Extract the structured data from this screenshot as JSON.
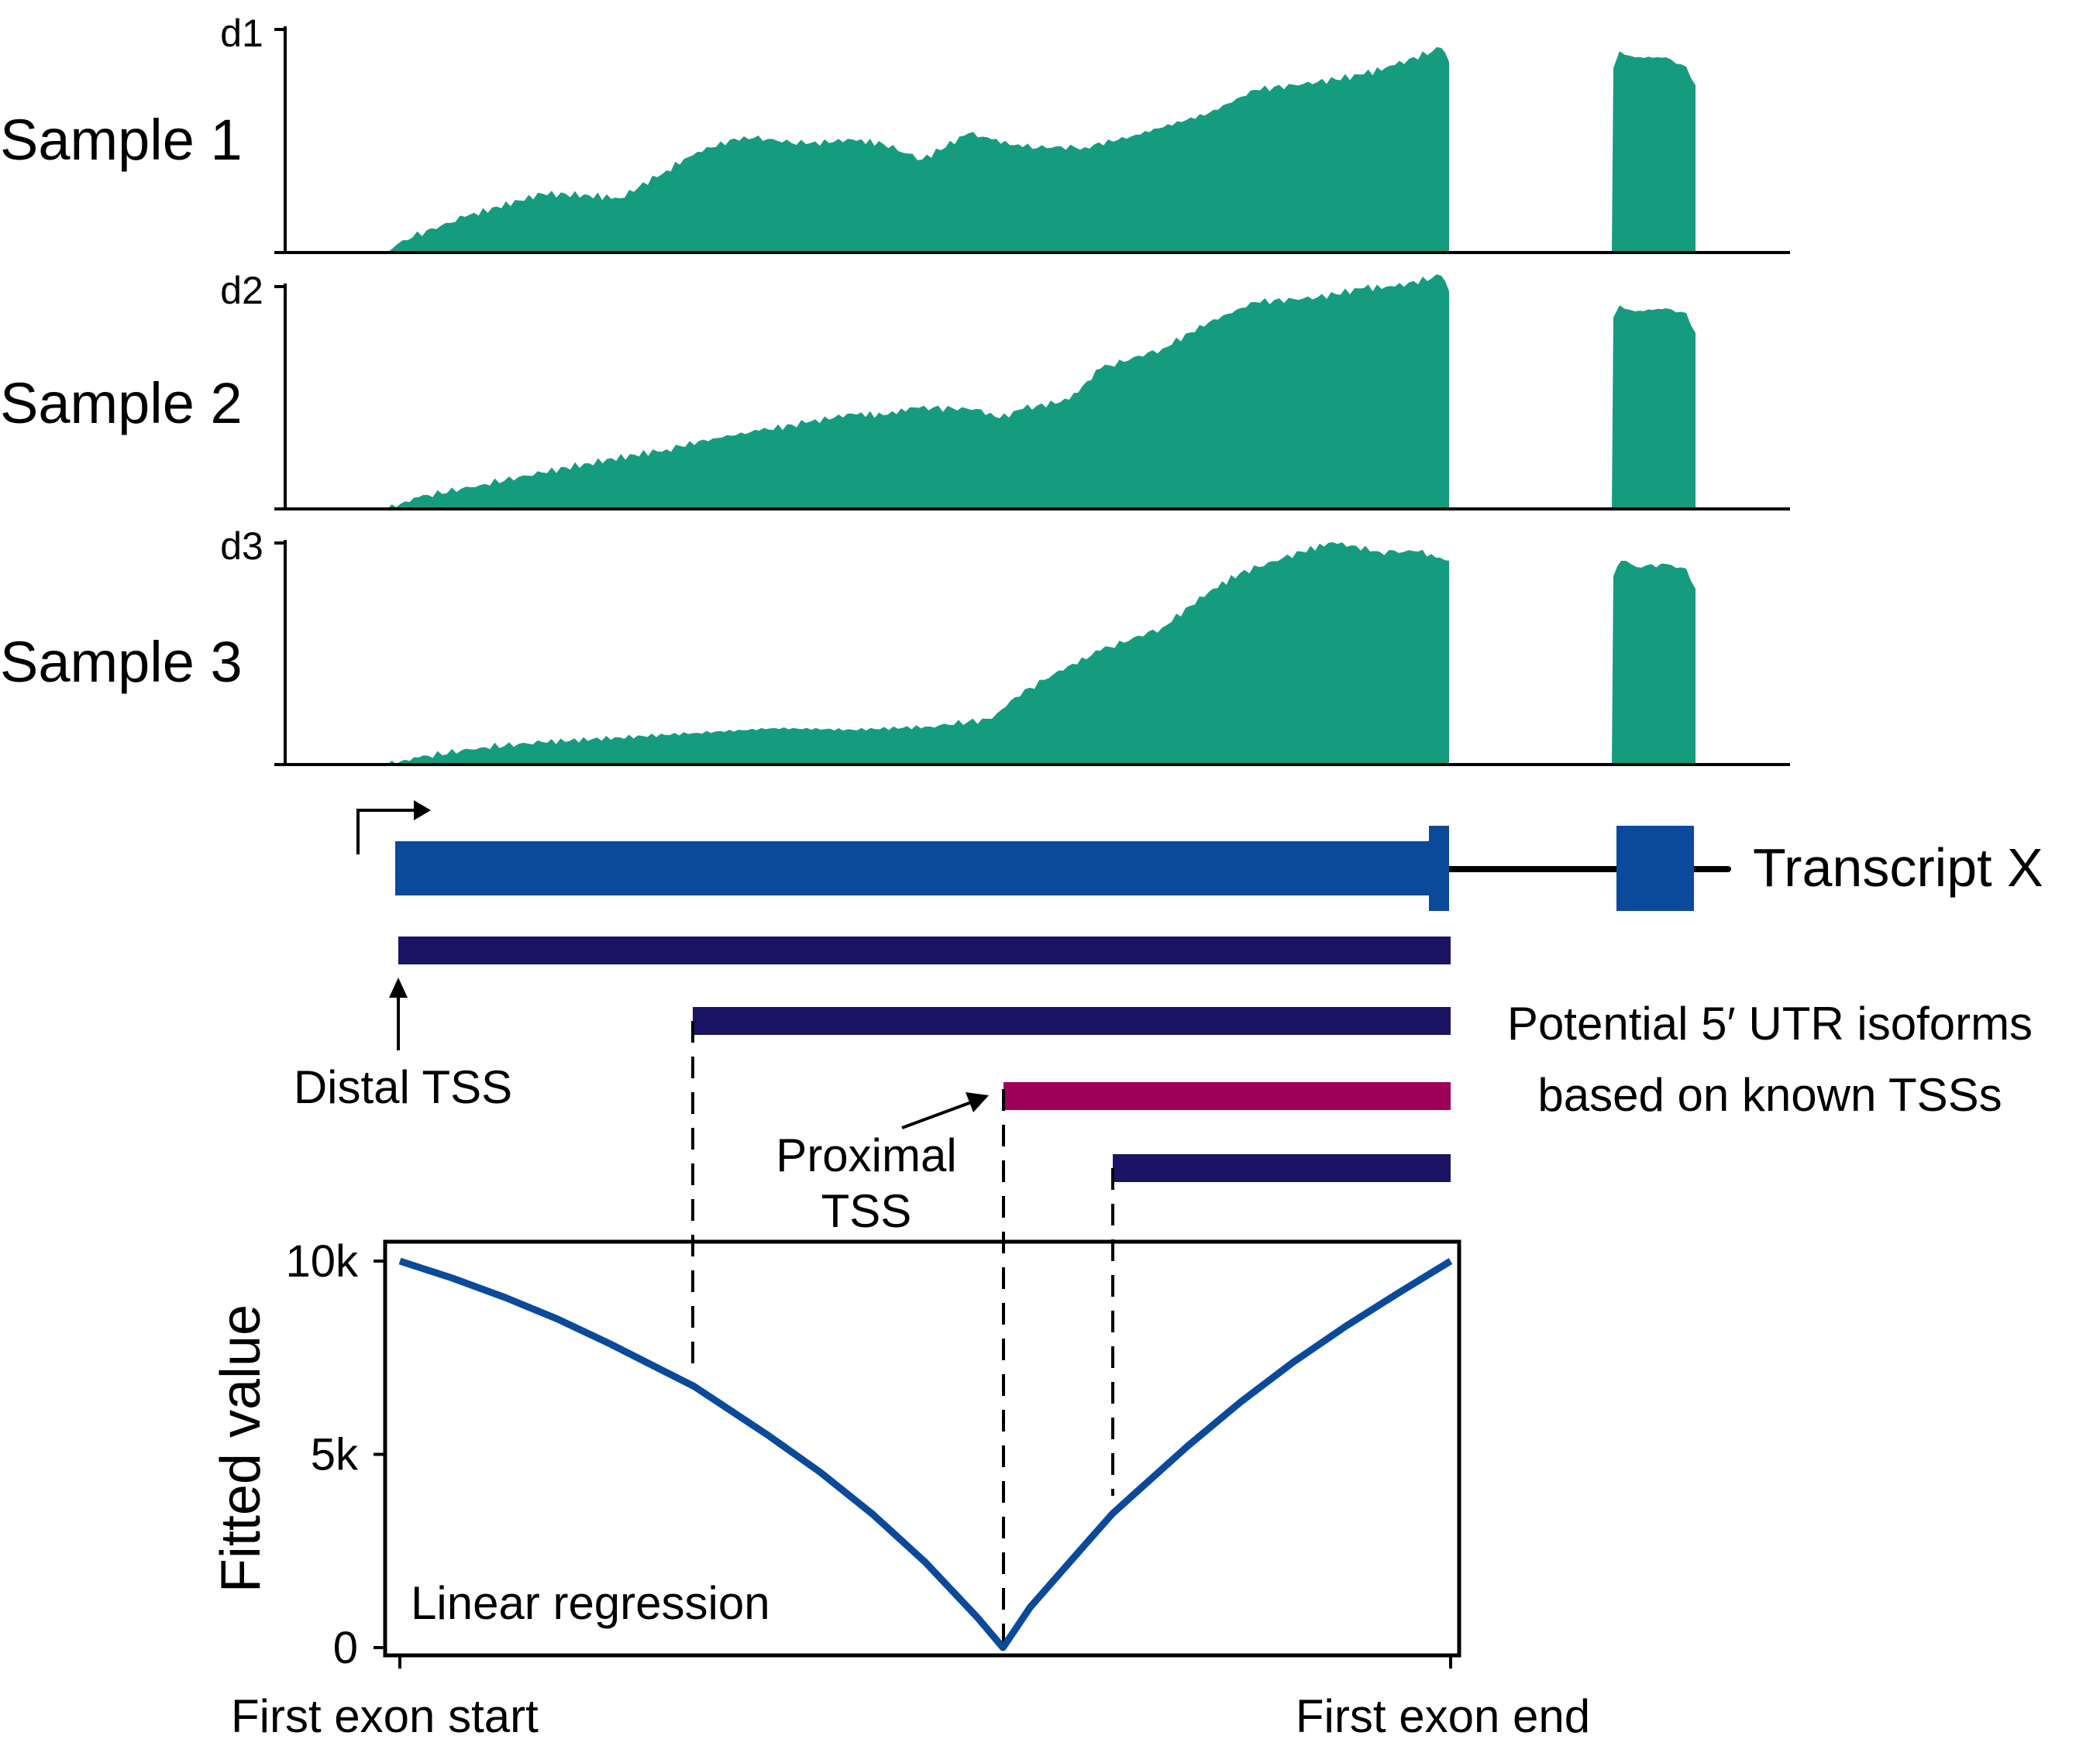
{
  "colors": {
    "coverage": "#159C7E",
    "transcript": "#0B4A9A",
    "isoform": "#1B1464",
    "proximal": "#9E0059",
    "curve": "#0B4A9A",
    "ink": "#000000"
  },
  "tracks": [
    {
      "label": "Sample 1",
      "max_label": "d1"
    },
    {
      "label": "Sample 2",
      "max_label": "d2"
    },
    {
      "label": "Sample 3",
      "max_label": "d3"
    }
  ],
  "transcript": {
    "label": "Transcript X"
  },
  "isoforms": {
    "label_line1": "Potential 5′ UTR isoforms",
    "label_line2": "based on known TSSs",
    "distal_label": "Distal TSS",
    "proximal_label_line1": "Proximal",
    "proximal_label_line2": "TSS"
  },
  "chart_data": {
    "type": "line",
    "ylabel": "Fitted value",
    "annotation": "Linear regression",
    "x_tick_labels": [
      "First exon start",
      "First exon end"
    ],
    "y_ticks": [
      {
        "value": 0,
        "label": "0"
      },
      {
        "value": 5000,
        "label": "5k"
      },
      {
        "value": 10000,
        "label": "10k"
      }
    ],
    "ylim": [
      0,
      10000
    ],
    "xlim": [
      0,
      1
    ],
    "series": [
      {
        "x": [
          0.0,
          0.05,
          0.1,
          0.15,
          0.2,
          0.25,
          0.28,
          0.3,
          0.35,
          0.4,
          0.45,
          0.5,
          0.55,
          0.574,
          0.6,
          0.65,
          0.678,
          0.7,
          0.75,
          0.8,
          0.85,
          0.9,
          0.95,
          1.0
        ],
        "y": [
          10000,
          9560,
          9060,
          8500,
          7860,
          7170,
          6760,
          6400,
          5500,
          4540,
          3450,
          2210,
          770,
          0,
          1050,
          2600,
          3460,
          4000,
          5220,
          6350,
          7380,
          8310,
          9170,
          10000
        ]
      }
    ]
  }
}
